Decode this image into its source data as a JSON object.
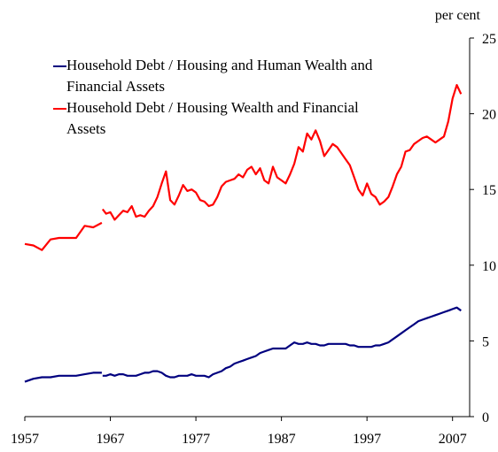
{
  "chart_data": {
    "type": "line",
    "ylabel": "per cent",
    "xlim": [
      1957,
      2009
    ],
    "xticks": [
      1957,
      1967,
      1977,
      1987,
      1997,
      2007
    ],
    "ylim": [
      0,
      25
    ],
    "yticks": [
      0,
      5,
      10,
      15,
      20,
      25
    ],
    "legend": "upper left",
    "x": [
      1957,
      1958,
      1959,
      1960,
      1961,
      1962,
      1963,
      1964,
      1965,
      1966,
      1966.05,
      1966.1,
      1966.5,
      1967,
      1967.5,
      1968,
      1968.5,
      1969,
      1969.5,
      1970,
      1970.5,
      1971,
      1971.5,
      1972,
      1972.5,
      1973,
      1973.5,
      1974,
      1974.5,
      1975,
      1975.5,
      1976,
      1976.5,
      1977,
      1977.5,
      1978,
      1978.5,
      1979,
      1979.5,
      1980,
      1980.5,
      1981,
      1981.5,
      1982,
      1982.5,
      1983,
      1983.5,
      1984,
      1984.5,
      1985,
      1985.5,
      1986,
      1986.5,
      1987,
      1987.5,
      1988,
      1988.5,
      1989,
      1989.5,
      1990,
      1990.5,
      1991,
      1991.5,
      1992,
      1992.5,
      1993,
      1993.5,
      1994,
      1994.5,
      1995,
      1995.5,
      1996,
      1996.5,
      1997,
      1997.5,
      1998,
      1998.5,
      1999,
      1999.5,
      2000,
      2000.5,
      2001,
      2001.5,
      2002,
      2002.5,
      2003,
      2003.5,
      2004,
      2004.5,
      2005,
      2005.5,
      2006,
      2006.5,
      2007,
      2007.5,
      2008
    ],
    "series": [
      {
        "name": "Household Debt / Housing and Human Wealth and Financial Assets",
        "color": "#00007f",
        "values": [
          2.3,
          2.5,
          2.6,
          2.6,
          2.7,
          2.7,
          2.7,
          2.8,
          2.9,
          2.9,
          null,
          2.7,
          2.7,
          2.8,
          2.7,
          2.8,
          2.8,
          2.7,
          2.7,
          2.7,
          2.8,
          2.9,
          2.9,
          3.0,
          3.0,
          2.9,
          2.7,
          2.6,
          2.6,
          2.7,
          2.7,
          2.7,
          2.8,
          2.7,
          2.7,
          2.7,
          2.6,
          2.8,
          2.9,
          3.0,
          3.2,
          3.3,
          3.5,
          3.6,
          3.7,
          3.8,
          3.9,
          4.0,
          4.2,
          4.3,
          4.4,
          4.5,
          4.5,
          4.5,
          4.5,
          4.7,
          4.9,
          4.8,
          4.8,
          4.9,
          4.8,
          4.8,
          4.7,
          4.7,
          4.8,
          4.8,
          4.8,
          4.8,
          4.8,
          4.7,
          4.7,
          4.6,
          4.6,
          4.6,
          4.6,
          4.7,
          4.7,
          4.8,
          4.9,
          5.1,
          5.3,
          5.5,
          5.7,
          5.9,
          6.1,
          6.3,
          6.4,
          6.5,
          6.6,
          6.7,
          6.8,
          6.9,
          7.0,
          7.1,
          7.2,
          7.0
        ]
      },
      {
        "name": "Household Debt / Housing Wealth and Financial Assets",
        "color": "#ff0000",
        "values": [
          11.4,
          11.3,
          11.0,
          11.7,
          11.8,
          11.8,
          11.8,
          12.6,
          12.5,
          12.8,
          null,
          13.7,
          13.4,
          13.5,
          13.0,
          13.3,
          13.6,
          13.5,
          13.9,
          13.2,
          13.3,
          13.2,
          13.6,
          13.9,
          14.5,
          15.4,
          16.2,
          14.3,
          14.0,
          14.6,
          15.3,
          14.9,
          15.0,
          14.8,
          14.3,
          14.2,
          13.9,
          14.0,
          14.5,
          15.2,
          15.5,
          15.6,
          15.7,
          16.0,
          15.8,
          16.3,
          16.5,
          16.0,
          16.4,
          15.6,
          15.4,
          16.5,
          15.8,
          15.6,
          15.4,
          16.0,
          16.7,
          17.8,
          17.5,
          18.7,
          18.3,
          18.9,
          18.2,
          17.2,
          17.6,
          18.0,
          17.8,
          17.4,
          17.0,
          16.6,
          15.8,
          15.0,
          14.6,
          15.4,
          14.7,
          14.5,
          14.0,
          14.2,
          14.5,
          15.2,
          16.0,
          16.5,
          17.5,
          17.6,
          18.0,
          18.2,
          18.4,
          18.5,
          18.3,
          18.1,
          18.3,
          18.5,
          19.5,
          21.0,
          21.9,
          21.3
        ]
      }
    ]
  }
}
